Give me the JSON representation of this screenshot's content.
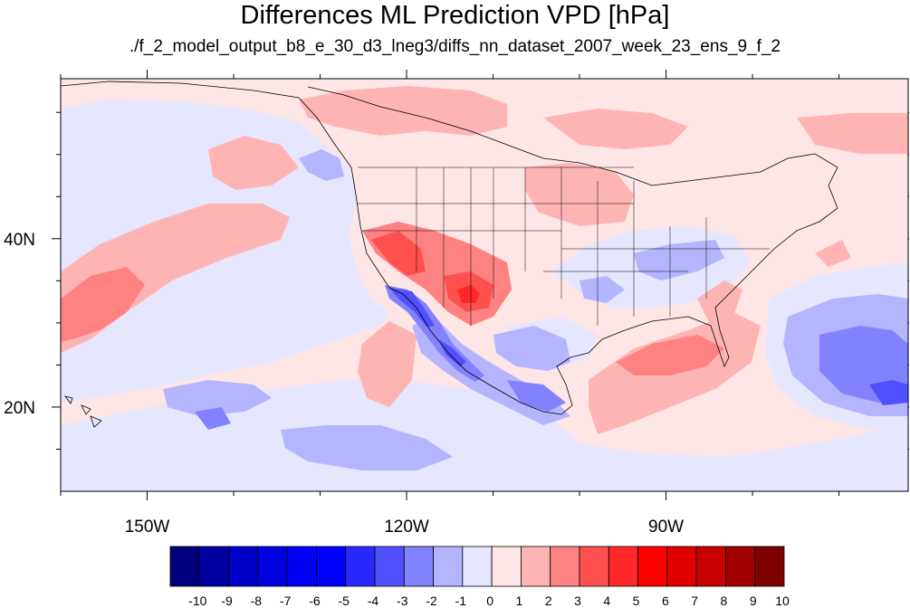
{
  "title": "Differences ML Prediction VPD [hPa]",
  "subtitle": "./f_2_model_output_b8_e_30_d3_lneg3/diffs_nn_dataset_2007_week_23_ens_9_f_2",
  "map": {
    "region": "North America and eastern Pacific",
    "lon_range": [
      -160,
      -62
    ],
    "lat_range": [
      10,
      59
    ],
    "x_tick_labels": [
      {
        "lon": -150,
        "label": "150W"
      },
      {
        "lon": -120,
        "label": "120W"
      },
      {
        "lon": -90,
        "label": "90W"
      }
    ],
    "y_tick_labels": [
      {
        "lat": 40,
        "label": "40N"
      },
      {
        "lat": 20,
        "label": "20N"
      }
    ],
    "minor_lon_ticks": [
      -160,
      -150,
      -140,
      -130,
      -120,
      -110,
      -100,
      -90,
      -80,
      -70
    ],
    "minor_lat_ticks": [
      15,
      20,
      25,
      30,
      35,
      40,
      45,
      50,
      55
    ]
  },
  "colorbar": {
    "labels": [
      "-10",
      "-9",
      "-8",
      "-7",
      "-6",
      "-5",
      "-4",
      "-3",
      "-2",
      "-1",
      "0",
      "1",
      "2",
      "3",
      "4",
      "5",
      "6",
      "7",
      "8",
      "9",
      "10"
    ],
    "colors": [
      "#00007f",
      "#0000a3",
      "#0000c8",
      "#0000e1",
      "#0000f5",
      "#0000ff",
      "#2828ff",
      "#5050ff",
      "#8282ff",
      "#b4b4ff",
      "#e6e6ff",
      "#ffe6e6",
      "#ffb4b4",
      "#ff8282",
      "#ff5050",
      "#ff2828",
      "#ff0000",
      "#e10000",
      "#c80000",
      "#a30000",
      "#7f0000"
    ]
  }
}
